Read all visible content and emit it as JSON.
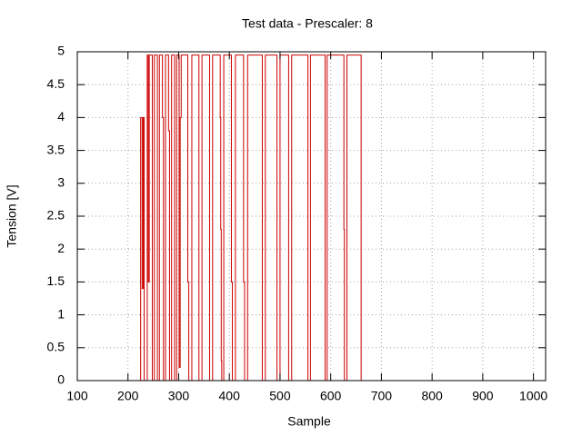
{
  "chart_data": {
    "type": "line",
    "title": "Test data - Prescaler: 8",
    "x_label": "Sample",
    "y_label": "Tension [V]",
    "x": [
      100,
      225,
      225,
      228,
      228,
      230,
      230,
      232,
      232,
      238,
      238,
      240,
      240,
      242,
      242,
      248,
      248,
      252,
      252,
      258,
      258,
      262,
      262,
      268,
      268,
      270,
      270,
      274,
      274,
      280,
      280,
      282,
      282,
      286,
      286,
      292,
      292,
      296,
      296,
      301,
      301,
      303,
      303,
      305,
      305,
      318,
      318,
      320,
      320,
      326,
      326,
      340,
      340,
      346,
      346,
      361,
      361,
      367,
      367,
      382,
      382,
      383,
      383,
      384,
      384,
      385,
      385,
      389,
      389,
      404,
      404,
      406,
      406,
      412,
      412,
      428,
      428,
      430,
      430,
      436,
      436,
      465,
      465,
      471,
      471,
      494,
      494,
      500,
      500,
      517,
      517,
      523,
      523,
      555,
      555,
      560,
      560,
      589,
      589,
      593,
      593,
      626,
      626,
      627,
      627,
      632,
      632,
      660,
      660
    ],
    "values": [
      0,
      0,
      4,
      4,
      1.4,
      1.4,
      4,
      4,
      0,
      0,
      4.95,
      4.95,
      1.5,
      1.5,
      4.95,
      4.95,
      0,
      0,
      4.95,
      4.95,
      0,
      0,
      4.95,
      4.95,
      4,
      4,
      0,
      0,
      4.95,
      4.95,
      3.8,
      3.8,
      0,
      0,
      4.95,
      4.95,
      0,
      0,
      4.95,
      4.95,
      0.2,
      0.2,
      4,
      4,
      4.95,
      4.95,
      1.5,
      1.5,
      0,
      0,
      4.95,
      4.95,
      0,
      0,
      4.95,
      4.95,
      0,
      0,
      4.95,
      4.95,
      4,
      4,
      2.3,
      2.3,
      0.3,
      0.3,
      0,
      0,
      4.95,
      4.95,
      1.5,
      1.5,
      0,
      0,
      4.95,
      4.95,
      1.5,
      1.5,
      0,
      0,
      4.95,
      4.95,
      0,
      0,
      4.95,
      4.95,
      0,
      0,
      4.95,
      4.95,
      0,
      0,
      4.95,
      4.95,
      0,
      0,
      4.95,
      4.95,
      0,
      0,
      4.95,
      4.95,
      2.3,
      2.3,
      0,
      0,
      4.95,
      4.95,
      0
    ],
    "color": "#cc0000",
    "xlim": [
      100,
      1024
    ],
    "ylim": [
      0,
      5
    ],
    "xticks": [
      100,
      200,
      300,
      400,
      500,
      600,
      700,
      800,
      900,
      1000
    ],
    "yticks": [
      0,
      0.5,
      1,
      1.5,
      2,
      2.5,
      3,
      3.5,
      4,
      4.5,
      5
    ],
    "grid": true
  }
}
